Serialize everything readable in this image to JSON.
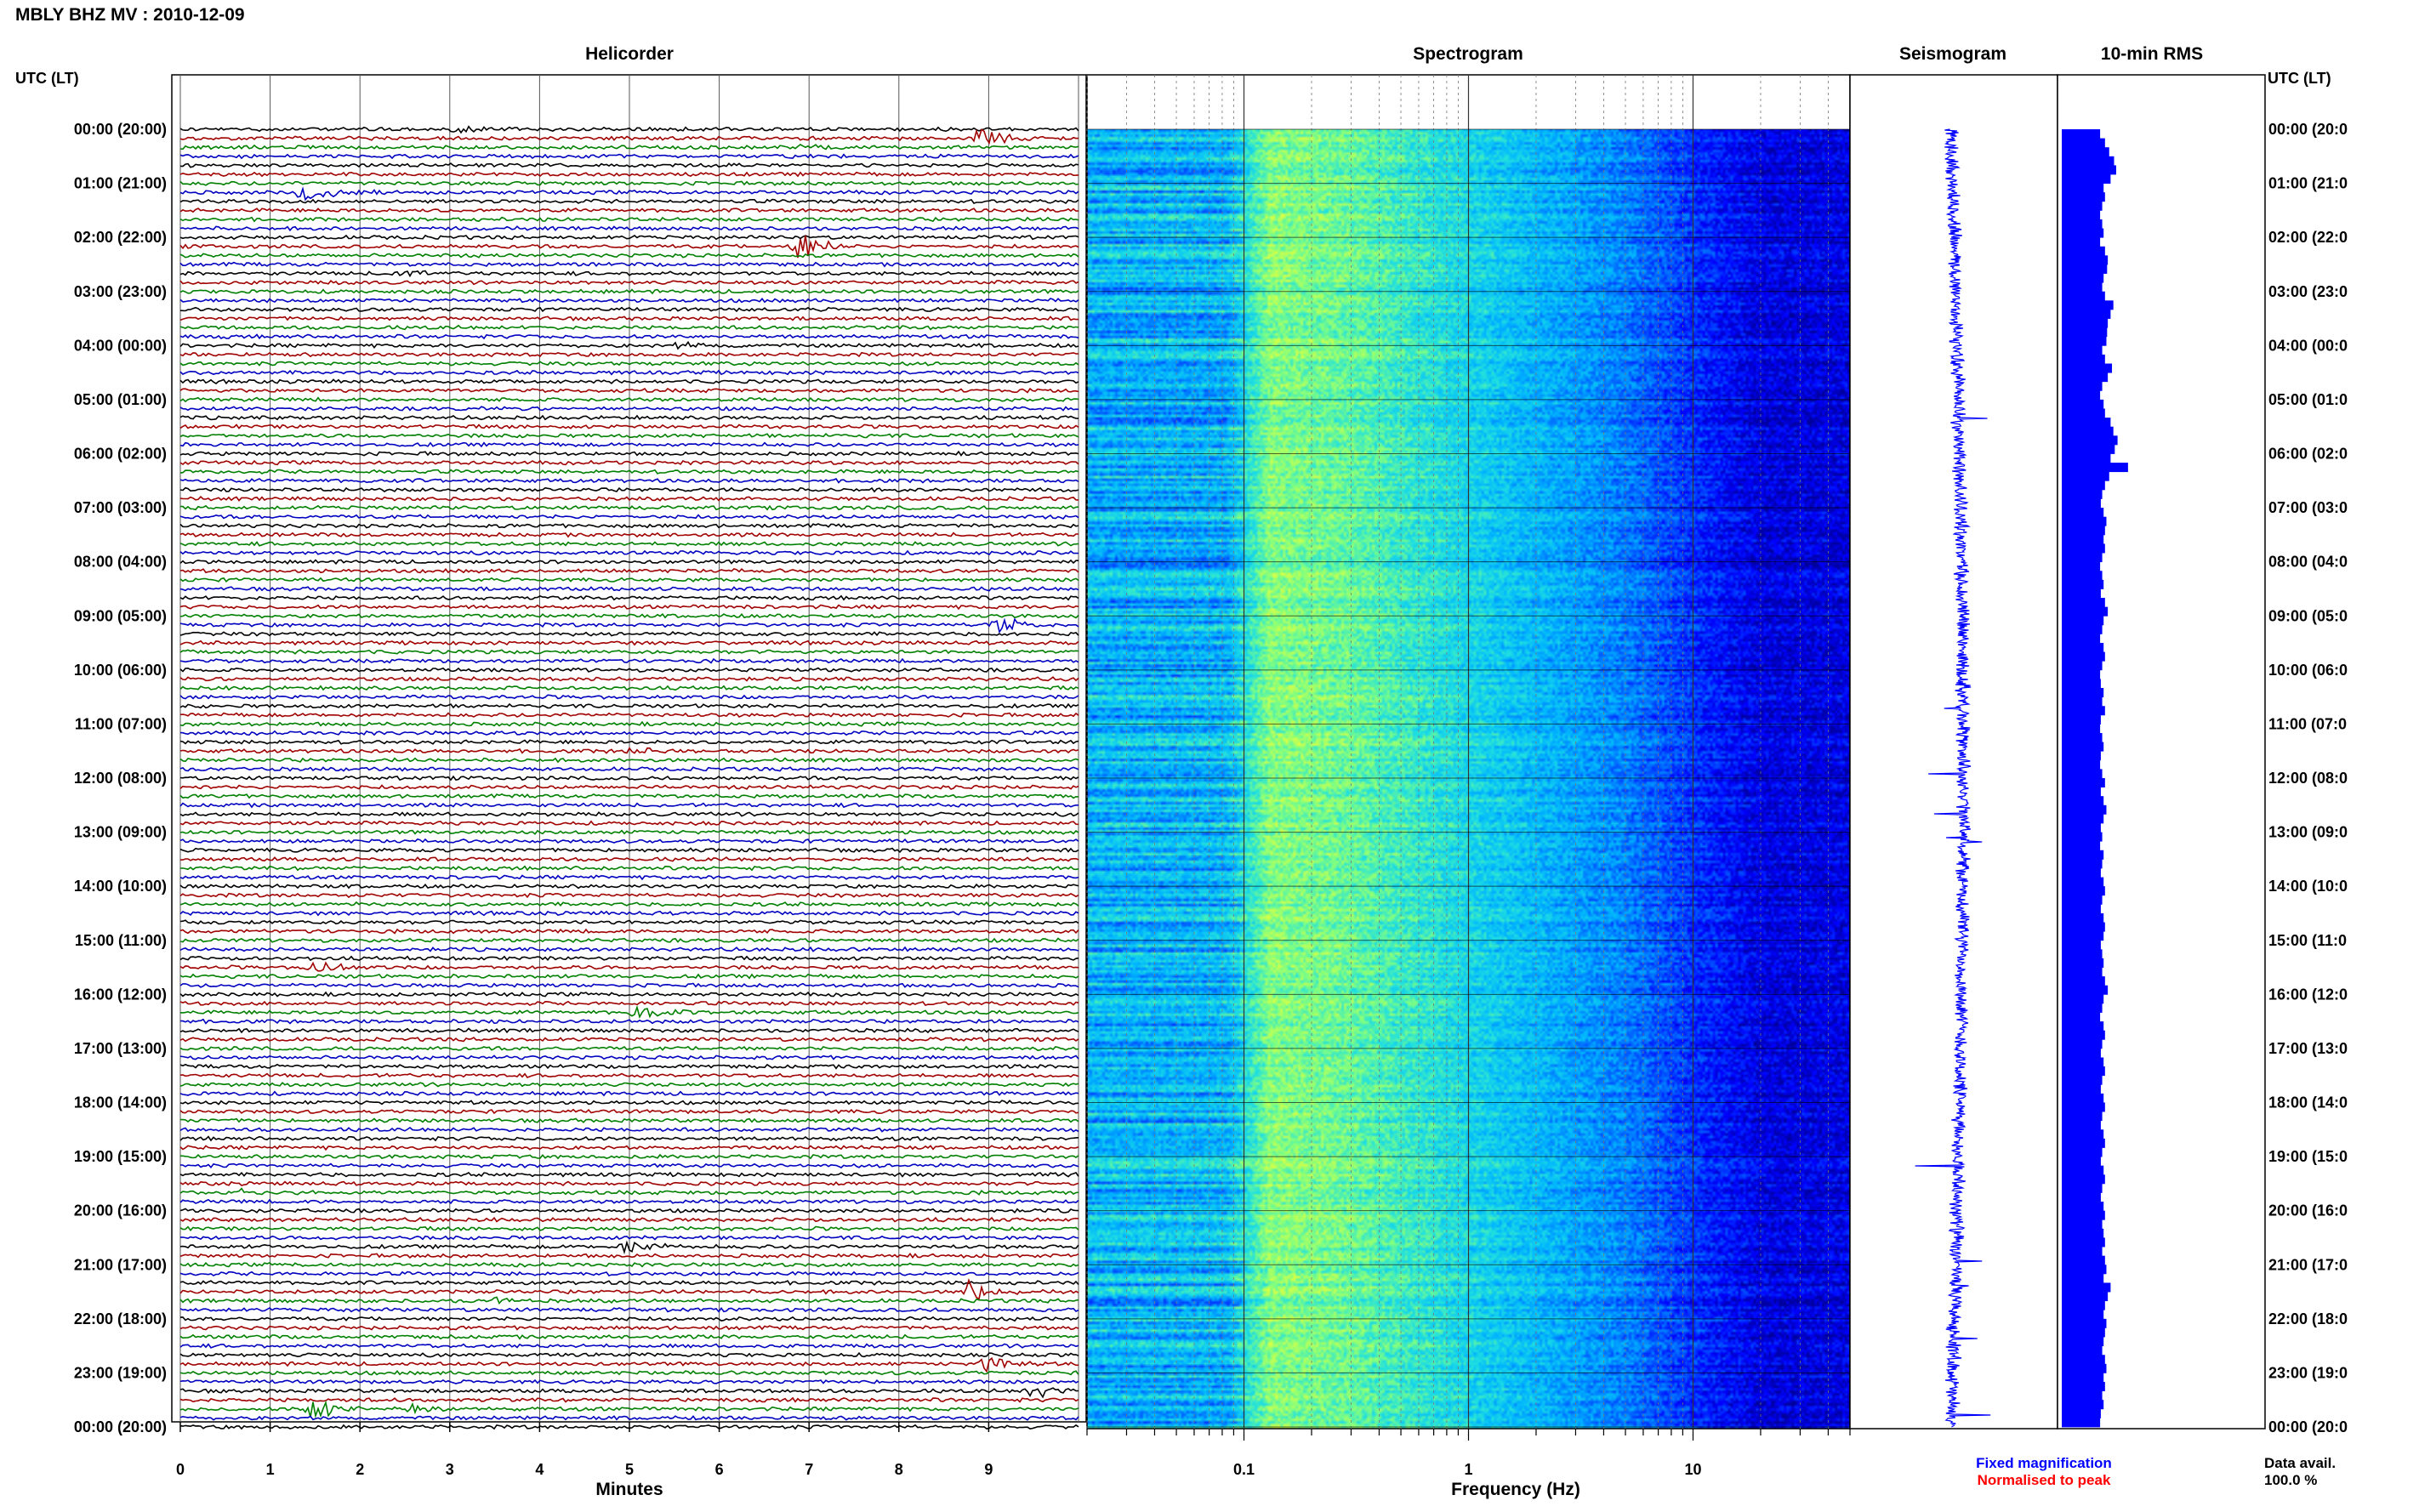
{
  "header": {
    "station_title": "MBLY BHZ MV : 2010-12-09",
    "utc_lt_label": "UTC (LT)"
  },
  "panels": {
    "helicorder": "Helicorder",
    "spectrogram": "Spectrogram",
    "seismogram": "Seismogram",
    "rms": "10-min RMS"
  },
  "chart_data": [
    {
      "type": "line",
      "name": "helicorder",
      "title": "Helicorder",
      "xlabel": "Minutes",
      "ylabel": "UTC (LT)",
      "xlim": [
        0,
        10
      ],
      "x_ticks": [
        "0",
        "1",
        "2",
        "3",
        "4",
        "5",
        "6",
        "7",
        "8",
        "9"
      ],
      "time_labels": [
        "00:00 (20:00)",
        "01:00 (21:00)",
        "02:00 (22:00)",
        "03:00 (23:00)",
        "04:00 (00:00)",
        "05:00 (01:00)",
        "06:00 (02:00)",
        "07:00 (03:00)",
        "08:00 (04:00)",
        "09:00 (05:00)",
        "10:00 (06:00)",
        "11:00 (07:00)",
        "12:00 (08:00)",
        "13:00 (09:00)",
        "14:00 (10:00)",
        "15:00 (11:00)",
        "16:00 (12:00)",
        "17:00 (13:00)",
        "18:00 (14:00)",
        "19:00 (15:00)",
        "20:00 (16:00)",
        "21:00 (17:00)",
        "22:00 (18:00)",
        "23:00 (19:00)",
        "00:00 (20:00)"
      ],
      "right_time_labels": [
        "00:00 (20:0",
        "01:00 (21:0",
        "02:00 (22:0",
        "03:00 (23:0",
        "04:00 (00:0",
        "05:00 (01:0",
        "06:00 (02:0",
        "07:00 (03:0",
        "08:00 (04:0",
        "09:00 (05:0",
        "10:00 (06:0",
        "11:00 (07:0",
        "12:00 (08:0",
        "13:00 (09:0",
        "14:00 (10:0",
        "15:00 (11:0",
        "16:00 (12:0",
        "17:00 (13:0",
        "18:00 (14:0",
        "19:00 (15:0",
        "20:00 (16:0",
        "21:00 (17:0",
        "22:00 (18:0",
        "23:00 (19:0",
        "00:00 (20:0"
      ],
      "traces_per_hour": 6,
      "trace_colors": [
        "#000000",
        "#a00000",
        "#008000",
        "#0000c0"
      ],
      "events": [
        {
          "trace": 0,
          "minute": 3.1,
          "amp": 0.6
        },
        {
          "trace": 1,
          "minute": 8.9,
          "amp": 1.4
        },
        {
          "trace": 2,
          "minute": 7.0,
          "amp": 0.5
        },
        {
          "trace": 7,
          "minute": 1.4,
          "amp": 1.6
        },
        {
          "trace": 13,
          "minute": 6.9,
          "amp": 2.2
        },
        {
          "trace": 16,
          "minute": 2.5,
          "amp": 0.6
        },
        {
          "trace": 24,
          "minute": 5.6,
          "amp": 0.4
        },
        {
          "trace": 55,
          "minute": 9.1,
          "amp": 1.3
        },
        {
          "trace": 69,
          "minute": 5.0,
          "amp": 0.6
        },
        {
          "trace": 93,
          "minute": 1.5,
          "amp": 1.0
        },
        {
          "trace": 98,
          "minute": 5.1,
          "amp": 1.2
        },
        {
          "trace": 118,
          "minute": 0.7,
          "amp": 0.7
        },
        {
          "trace": 124,
          "minute": 5.0,
          "amp": 0.8
        },
        {
          "trace": 129,
          "minute": 8.8,
          "amp": 1.6
        },
        {
          "trace": 130,
          "minute": 3.5,
          "amp": 0.5
        },
        {
          "trace": 137,
          "minute": 9.0,
          "amp": 1.2
        },
        {
          "trace": 140,
          "minute": 9.5,
          "amp": 1.0
        },
        {
          "trace": 142,
          "minute": 1.5,
          "amp": 1.6
        },
        {
          "trace": 142,
          "minute": 2.6,
          "amp": 0.7
        }
      ]
    },
    {
      "type": "heatmap",
      "name": "spectrogram",
      "title": "Spectrogram",
      "xlabel": "Frequency (Hz)",
      "x_scale": "log",
      "xlim": [
        0.02,
        50
      ],
      "x_ticks": [
        "0.1",
        "1",
        "10"
      ],
      "colormap": [
        "#00009a",
        "#0000ff",
        "#0060ff",
        "#00b4ff",
        "#20e0e0",
        "#80ff80",
        "#e0ff40"
      ]
    },
    {
      "type": "line",
      "name": "seismogram",
      "title": "Seismogram",
      "legend": [
        "Fixed magnification",
        "Normalised to peak"
      ],
      "legend_colors": [
        "#0000ff",
        "#ff0000"
      ]
    },
    {
      "type": "bar",
      "name": "rms",
      "title": "10-min RMS",
      "bar_color": "#0000ff",
      "footer": [
        "Data avail.",
        "100.0 %"
      ],
      "values_relative": [
        0.55,
        0.62,
        0.68,
        0.75,
        0.78,
        0.7,
        0.6,
        0.62,
        0.58,
        0.55,
        0.58,
        0.6,
        0.55,
        0.62,
        0.66,
        0.65,
        0.6,
        0.58,
        0.62,
        0.74,
        0.7,
        0.66,
        0.65,
        0.64,
        0.58,
        0.62,
        0.72,
        0.66,
        0.58,
        0.55,
        0.6,
        0.62,
        0.7,
        0.74,
        0.8,
        0.76,
        0.7,
        0.95,
        0.68,
        0.62,
        0.58,
        0.56,
        0.6,
        0.64,
        0.62,
        0.6,
        0.62,
        0.58,
        0.55,
        0.58,
        0.6,
        0.56,
        0.62,
        0.66,
        0.6,
        0.58,
        0.55,
        0.6,
        0.62,
        0.58,
        0.55,
        0.56,
        0.6,
        0.58,
        0.62,
        0.56,
        0.55,
        0.58,
        0.6,
        0.56,
        0.55,
        0.58,
        0.62,
        0.56,
        0.6,
        0.64,
        0.6,
        0.56,
        0.58,
        0.55,
        0.6,
        0.58,
        0.56,
        0.6,
        0.62,
        0.58,
        0.56,
        0.6,
        0.62,
        0.6,
        0.56,
        0.58,
        0.6,
        0.58,
        0.62,
        0.66,
        0.6,
        0.58,
        0.55,
        0.6,
        0.62,
        0.58,
        0.56,
        0.6,
        0.62,
        0.58,
        0.56,
        0.6,
        0.62,
        0.58,
        0.56,
        0.6,
        0.62,
        0.58,
        0.56,
        0.6,
        0.62,
        0.58,
        0.56,
        0.6,
        0.62,
        0.58,
        0.6,
        0.62,
        0.58,
        0.62,
        0.64,
        0.6,
        0.7,
        0.66,
        0.62,
        0.6,
        0.64,
        0.62,
        0.6,
        0.58,
        0.62,
        0.64,
        0.6,
        0.62,
        0.58,
        0.6,
        0.56,
        0.55
      ]
    }
  ]
}
